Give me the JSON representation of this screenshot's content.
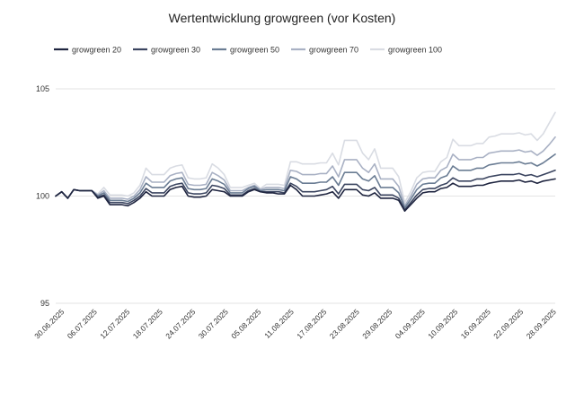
{
  "chart_data": {
    "type": "line",
    "title": "Wertentwicklung growgreen (vor Kosten)",
    "xlabel": "",
    "ylabel": "",
    "ylim": [
      95,
      105
    ],
    "yticks": [
      "95",
      "100",
      "105"
    ],
    "xticks": [
      "30.06.2025",
      "06.07.2025",
      "12.07.2025",
      "18.07.2025",
      "24.07.2025",
      "30.07.2025",
      "05.08.2025",
      "11.08.2025",
      "17.08.2025",
      "23.08.2025",
      "29.08.2025",
      "04.09.2025",
      "10.09.2025",
      "16.09.2025",
      "22.09.2025",
      "28.09.2025"
    ],
    "grid": true,
    "legend_position": "top-left",
    "series": [
      {
        "name": "growgreen 20",
        "color": "#1f2540",
        "values": [
          100.0,
          100.2,
          99.9,
          100.3,
          100.25,
          100.25,
          100.25,
          99.9,
          100.0,
          99.6,
          99.6,
          99.6,
          99.55,
          99.7,
          99.9,
          100.2,
          100.0,
          100.0,
          100.0,
          100.3,
          100.4,
          100.45,
          100.0,
          99.95,
          99.95,
          100.0,
          100.3,
          100.25,
          100.2,
          100.0,
          100.0,
          100.0,
          100.2,
          100.3,
          100.2,
          100.15,
          100.15,
          100.1,
          100.1,
          100.5,
          100.3,
          100.0,
          100.0,
          100.0,
          100.05,
          100.1,
          100.2,
          99.9,
          100.3,
          100.3,
          100.3,
          100.05,
          100.0,
          100.15,
          99.9,
          99.9,
          99.9,
          99.8,
          99.3,
          99.6,
          99.9,
          100.15,
          100.2,
          100.2,
          100.35,
          100.4,
          100.6,
          100.45,
          100.45,
          100.45,
          100.5,
          100.5,
          100.6,
          100.65,
          100.7,
          100.7,
          100.7,
          100.75,
          100.65,
          100.7,
          100.6,
          100.7,
          100.75,
          100.8
        ]
      },
      {
        "name": "growgreen 30",
        "color": "#3b4560",
        "values": [
          100.0,
          100.2,
          99.9,
          100.3,
          100.25,
          100.25,
          100.25,
          99.95,
          100.05,
          99.7,
          99.7,
          99.7,
          99.65,
          99.8,
          100.0,
          100.35,
          100.15,
          100.15,
          100.15,
          100.45,
          100.55,
          100.6,
          100.15,
          100.1,
          100.1,
          100.15,
          100.5,
          100.45,
          100.35,
          100.05,
          100.05,
          100.05,
          100.25,
          100.35,
          100.2,
          100.2,
          100.2,
          100.2,
          100.15,
          100.6,
          100.45,
          100.2,
          100.2,
          100.2,
          100.25,
          100.3,
          100.45,
          100.1,
          100.55,
          100.55,
          100.55,
          100.3,
          100.25,
          100.4,
          100.05,
          100.05,
          100.05,
          99.9,
          99.35,
          99.7,
          100.05,
          100.3,
          100.35,
          100.35,
          100.5,
          100.6,
          100.85,
          100.7,
          100.7,
          100.7,
          100.8,
          100.8,
          100.9,
          100.95,
          101.0,
          101.0,
          101.0,
          101.05,
          100.95,
          101.0,
          100.9,
          101.0,
          101.1,
          101.2
        ]
      },
      {
        "name": "growgreen 50",
        "color": "#6b7d94",
        "values": [
          100.0,
          100.2,
          99.9,
          100.3,
          100.25,
          100.25,
          100.25,
          100.0,
          100.15,
          99.8,
          99.8,
          99.8,
          99.75,
          99.9,
          100.15,
          100.6,
          100.4,
          100.4,
          100.4,
          100.7,
          100.8,
          100.85,
          100.35,
          100.3,
          100.3,
          100.35,
          100.8,
          100.7,
          100.55,
          100.15,
          100.15,
          100.15,
          100.35,
          100.45,
          100.25,
          100.3,
          100.3,
          100.3,
          100.25,
          100.9,
          100.8,
          100.6,
          100.6,
          100.6,
          100.65,
          100.65,
          100.9,
          100.5,
          101.1,
          101.1,
          101.1,
          100.8,
          100.7,
          100.95,
          100.4,
          100.4,
          100.4,
          100.15,
          99.45,
          99.85,
          100.3,
          100.55,
          100.6,
          100.6,
          100.85,
          100.95,
          101.4,
          101.2,
          101.2,
          101.2,
          101.3,
          101.3,
          101.45,
          101.5,
          101.55,
          101.55,
          101.55,
          101.6,
          101.5,
          101.55,
          101.4,
          101.55,
          101.75,
          101.95
        ]
      },
      {
        "name": "growgreen 70",
        "color": "#a9b1c4",
        "values": [
          100.0,
          100.2,
          99.9,
          100.3,
          100.25,
          100.25,
          100.25,
          100.05,
          100.25,
          99.9,
          99.9,
          99.9,
          99.85,
          100.0,
          100.3,
          100.9,
          100.65,
          100.65,
          100.65,
          100.95,
          101.05,
          101.1,
          100.55,
          100.5,
          100.5,
          100.55,
          101.1,
          100.95,
          100.75,
          100.25,
          100.25,
          100.25,
          100.4,
          100.5,
          100.3,
          100.4,
          100.4,
          100.4,
          100.35,
          101.2,
          101.15,
          101.0,
          101.0,
          101.0,
          101.05,
          101.05,
          101.4,
          100.9,
          101.7,
          101.7,
          101.7,
          101.3,
          101.1,
          101.5,
          100.8,
          100.8,
          100.8,
          100.45,
          99.55,
          100.0,
          100.55,
          100.8,
          100.85,
          100.85,
          101.2,
          101.35,
          101.95,
          101.7,
          101.7,
          101.7,
          101.8,
          101.8,
          102.0,
          102.05,
          102.1,
          102.1,
          102.1,
          102.15,
          102.05,
          102.1,
          101.9,
          102.1,
          102.4,
          102.75
        ]
      },
      {
        "name": "growgreen 100",
        "color": "#d9dce3",
        "values": [
          100.0,
          100.2,
          99.9,
          100.3,
          100.25,
          100.25,
          100.25,
          100.1,
          100.4,
          100.05,
          100.05,
          100.05,
          100.0,
          100.15,
          100.5,
          101.3,
          101.0,
          101.0,
          101.0,
          101.3,
          101.4,
          101.45,
          100.85,
          100.8,
          100.8,
          100.85,
          101.5,
          101.3,
          101.0,
          100.4,
          100.4,
          100.4,
          100.5,
          100.6,
          100.35,
          100.55,
          100.55,
          100.55,
          100.5,
          101.6,
          101.6,
          101.5,
          101.5,
          101.5,
          101.55,
          101.55,
          102.0,
          101.45,
          102.6,
          102.6,
          102.6,
          102.0,
          101.7,
          102.2,
          101.3,
          101.3,
          101.3,
          100.9,
          99.7,
          100.2,
          100.85,
          101.1,
          101.15,
          101.15,
          101.6,
          101.8,
          102.65,
          102.35,
          102.35,
          102.35,
          102.45,
          102.45,
          102.75,
          102.8,
          102.9,
          102.9,
          102.9,
          102.95,
          102.85,
          102.9,
          102.6,
          102.9,
          103.4,
          103.9
        ]
      }
    ]
  }
}
